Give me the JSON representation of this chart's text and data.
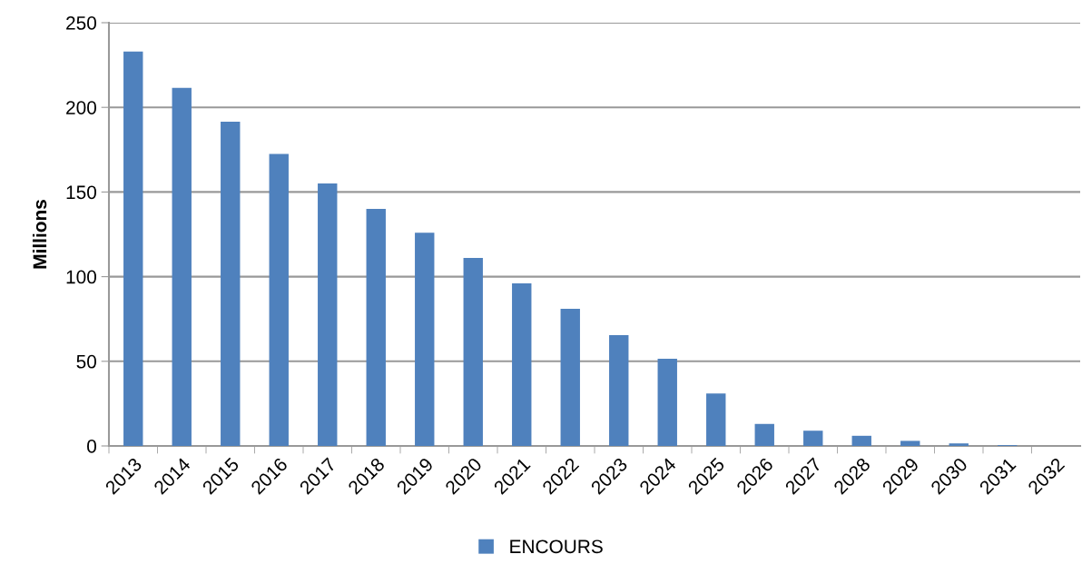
{
  "chart_data": {
    "type": "bar",
    "ylabel": "Millions",
    "categories": [
      "2013",
      "2014",
      "2015",
      "2016",
      "2017",
      "2018",
      "2019",
      "2020",
      "2021",
      "2022",
      "2023",
      "2024",
      "2025",
      "2026",
      "2027",
      "2028",
      "2029",
      "2030",
      "2031",
      "2032"
    ],
    "series": [
      {
        "name": "ENCOURS",
        "color": "#4f81bd",
        "values": [
          233,
          211.5,
          191.5,
          172.5,
          155,
          140,
          126,
          111,
          96,
          81,
          65.5,
          51.5,
          31,
          13,
          9,
          6,
          3,
          1.5,
          0.5,
          0
        ]
      }
    ],
    "ylim": [
      0,
      250
    ],
    "yticks": [
      0,
      50,
      100,
      150,
      200,
      250
    ],
    "grid": "y",
    "legend": "bottom"
  }
}
